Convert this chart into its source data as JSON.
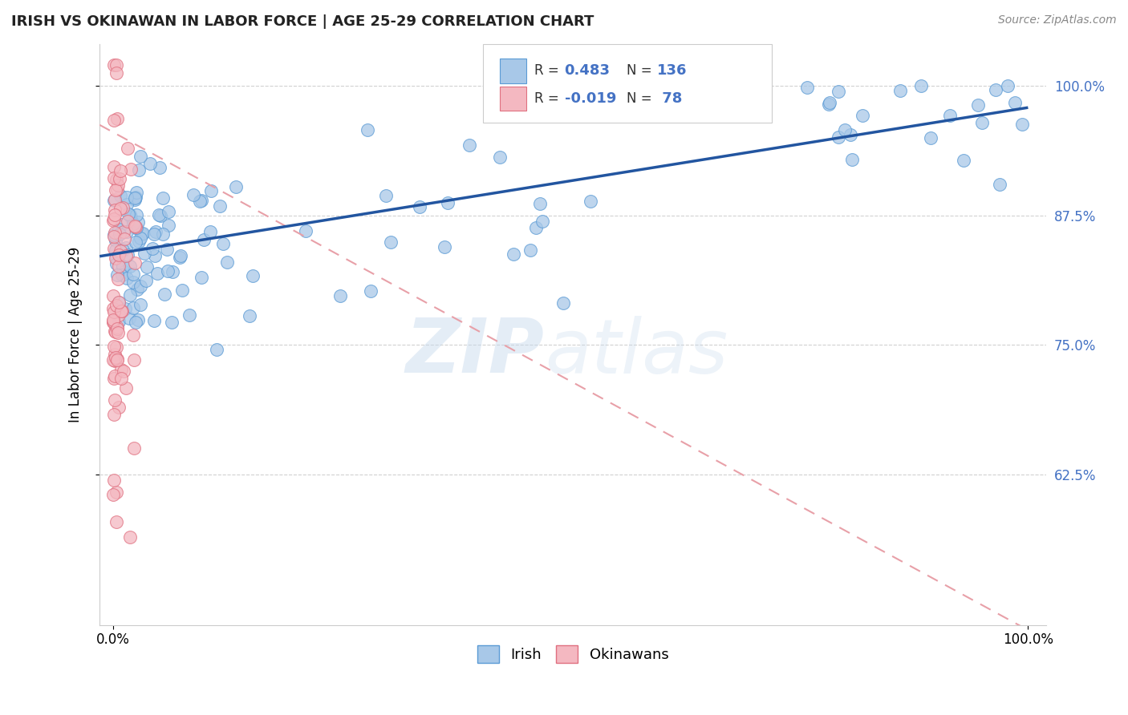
{
  "title": "IRISH VS OKINAWAN IN LABOR FORCE | AGE 25-29 CORRELATION CHART",
  "source_text": "Source: ZipAtlas.com",
  "ylabel": "In Labor Force | Age 25-29",
  "irish_R": 0.483,
  "irish_N": 136,
  "okinawan_R": -0.019,
  "okinawan_N": 78,
  "legend_labels": [
    "Irish",
    "Okinawans"
  ],
  "blue_fill": "#a8c8e8",
  "blue_edge": "#5b9bd5",
  "pink_fill": "#f4b8c1",
  "pink_edge": "#e07080",
  "trend_blue": "#2255a0",
  "trend_pink": "#e8a0a8",
  "ytick_labels": [
    "62.5%",
    "75.0%",
    "87.5%",
    "100.0%"
  ],
  "ytick_values": [
    0.625,
    0.75,
    0.875,
    1.0
  ],
  "xtick_labels": [
    "0.0%",
    "100.0%"
  ],
  "watermark_zip": "ZIP",
  "watermark_atlas": "atlas",
  "ylim_low": 0.48,
  "ylim_high": 1.04,
  "xlim_low": -0.015,
  "xlim_high": 1.02
}
